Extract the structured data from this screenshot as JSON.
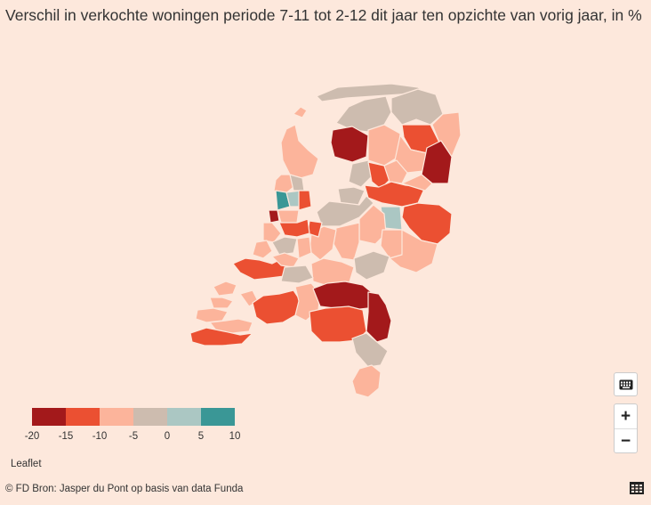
{
  "title": "Verschil in verkochte woningen periode 7-11 tot 2-12 dit jaar ten opzichte van vorig jaar, in %",
  "legend": {
    "colors": [
      "#a3191b",
      "#eb5032",
      "#fcb49b",
      "#cdbcaf",
      "#abc7c3",
      "#3a9796"
    ],
    "ticks": [
      "-20",
      "-15",
      "-10",
      "-5",
      "0",
      "5",
      "10"
    ]
  },
  "attribution": "Leaflet",
  "source": "© FD   Bron: Jasper du Pont op basis van data Funda",
  "controls": {
    "keyboard_icon": "keyboard-icon",
    "zoom_in": "+",
    "zoom_out": "−",
    "table_icon": "table-icon"
  },
  "map": {
    "color_scale": {
      "darkred": "#a3191b",
      "red": "#eb5032",
      "salmon": "#f08060",
      "peach": "#fcb49b",
      "lightpeach": "#fdc9b4",
      "taupe": "#cdbcaf",
      "lightteal": "#abc7c3",
      "teal": "#3a9796"
    }
  }
}
